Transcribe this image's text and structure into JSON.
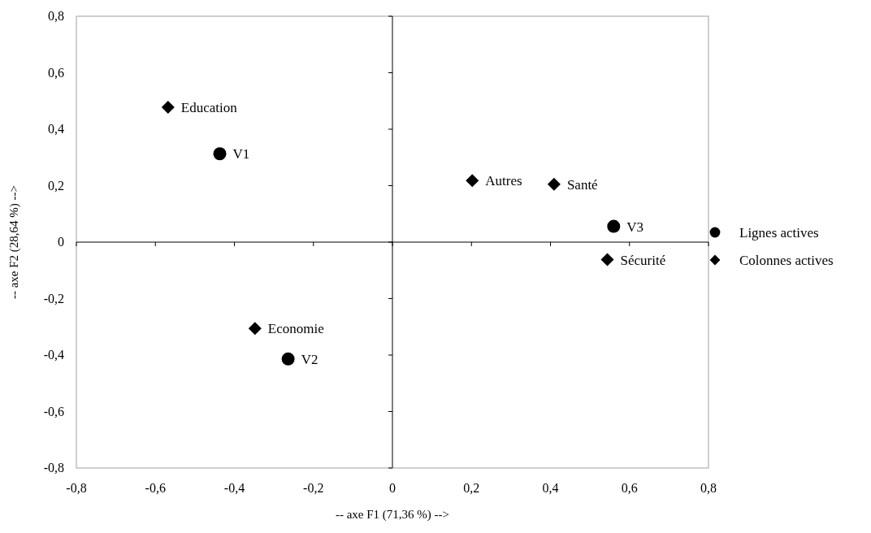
{
  "chart_data": {
    "type": "scatter",
    "xlabel": "-- axe F1 (71,36 %) -->",
    "ylabel": "-- axe F2 (28,64 %) -->",
    "xlim": [
      -0.8,
      0.8
    ],
    "ylim": [
      -0.8,
      0.8
    ],
    "xticks": [
      {
        "value": -0.8,
        "label": "-0,8"
      },
      {
        "value": -0.6,
        "label": "-0,6"
      },
      {
        "value": -0.4,
        "label": "-0,4"
      },
      {
        "value": -0.2,
        "label": "-0,2"
      },
      0,
      {
        "value": 0.2,
        "label": "0,2"
      },
      {
        "value": 0.4,
        "label": "0,4"
      },
      {
        "value": 0.6,
        "label": "0,6"
      },
      {
        "value": 0.8,
        "label": "0,8"
      }
    ],
    "yticks": [
      {
        "value": -0.8,
        "label": "-0,8"
      },
      {
        "value": -0.6,
        "label": "-0,6"
      },
      {
        "value": -0.4,
        "label": "-0,4"
      },
      {
        "value": -0.2,
        "label": "-0,2"
      },
      0,
      {
        "value": 0.2,
        "label": "0,2"
      },
      {
        "value": 0.4,
        "label": "0,4"
      },
      {
        "value": 0.6,
        "label": "0,6"
      },
      {
        "value": 0.8,
        "label": "0,8"
      }
    ],
    "legend": "right",
    "series": [
      {
        "name": "Lignes actives",
        "color": "#000000",
        "marker": "circle",
        "x": [
          -0.437,
          -0.264,
          0.56
        ],
        "values": [
          0.313,
          -0.414,
          0.056
        ]
      },
      {
        "name": "Colonnes actives",
        "color": "#000000",
        "marker": "diamond",
        "x": [
          -0.568,
          -0.348,
          0.202,
          0.409,
          0.544
        ],
        "values": [
          0.478,
          -0.306,
          0.218,
          0.205,
          -0.062
        ]
      }
    ],
    "annotations": [
      {
        "text": "V1",
        "x": -0.437,
        "y": 0.313
      },
      {
        "text": "V2",
        "x": -0.264,
        "y": -0.414
      },
      {
        "text": "V3",
        "x": 0.56,
        "y": 0.056
      },
      {
        "text": "Education",
        "x": -0.568,
        "y": 0.478
      },
      {
        "text": "Economie",
        "x": -0.348,
        "y": -0.306
      },
      {
        "text": "Autres",
        "x": 0.202,
        "y": 0.218
      },
      {
        "text": "Santé",
        "x": 0.409,
        "y": 0.205
      },
      {
        "text": "Sécurité",
        "x": 0.544,
        "y": -0.062
      }
    ]
  }
}
